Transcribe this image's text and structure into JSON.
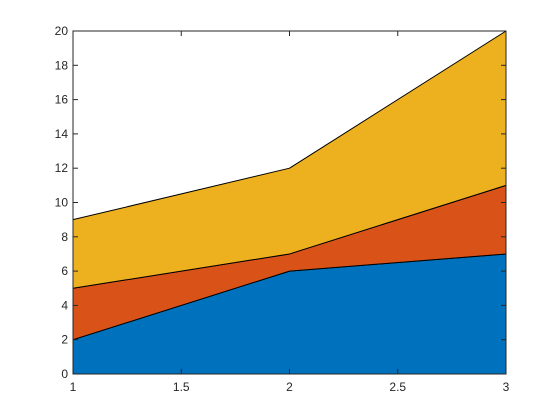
{
  "chart_data": {
    "type": "area",
    "stacked": true,
    "x": [
      1,
      2,
      3
    ],
    "series": [
      {
        "values": [
          2,
          6,
          7
        ],
        "color": "#0072BD"
      },
      {
        "values": [
          3,
          1,
          4
        ],
        "color": "#D95319"
      },
      {
        "values": [
          4,
          5,
          9
        ],
        "color": "#EDB120"
      }
    ],
    "xlim": [
      1,
      3
    ],
    "ylim": [
      0,
      20
    ],
    "xticks": [
      1,
      1.5,
      2,
      2.5,
      3
    ],
    "xtick_labels": [
      "1",
      "1.5",
      "2",
      "2.5",
      "3"
    ],
    "yticks": [
      0,
      2,
      4,
      6,
      8,
      10,
      12,
      14,
      16,
      18,
      20
    ],
    "ytick_labels": [
      "0",
      "2",
      "4",
      "6",
      "8",
      "10",
      "12",
      "14",
      "16",
      "18",
      "20"
    ],
    "title": "",
    "xlabel": "",
    "ylabel": "",
    "grid": false,
    "legend": false
  }
}
